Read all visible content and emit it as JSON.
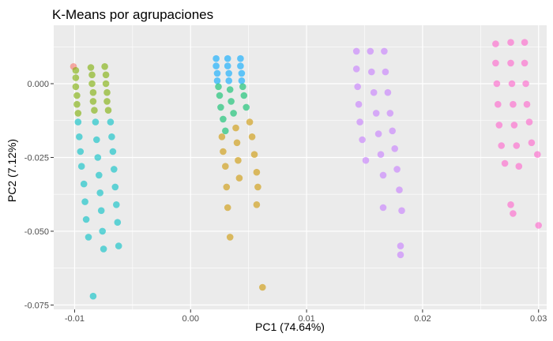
{
  "chart_data": {
    "type": "scatter",
    "title": "K-Means por agrupaciones",
    "xlabel": "PC1 (74.64%)",
    "ylabel": "PC2 (7.12%)",
    "xlim": [
      -0.0118,
      0.0307
    ],
    "ylim": [
      -0.0765,
      0.0198
    ],
    "xticks": [
      -0.01,
      0.0,
      0.01,
      0.02,
      0.03
    ],
    "xtick_labels": [
      "-0.01",
      "0.00",
      "0.01",
      "0.02",
      "0.03"
    ],
    "yticks": [
      0.0,
      -0.025,
      -0.05,
      -0.075
    ],
    "ytick_labels": [
      "0.000",
      "-0.025",
      "-0.050",
      "-0.075"
    ],
    "grid": true,
    "legend": "none",
    "series": [
      {
        "color": "#F8766D",
        "points": [
          [
            -0.0101,
            0.0058
          ]
        ]
      },
      {
        "color": "#7CAE00",
        "points": [
          [
            -0.0099,
            0.0045
          ],
          [
            -0.0099,
            0.002
          ],
          [
            -0.0099,
            -0.001
          ],
          [
            -0.0098,
            -0.004
          ],
          [
            -0.0098,
            -0.007
          ],
          [
            -0.0097,
            -0.01
          ],
          [
            -0.0086,
            0.0055
          ],
          [
            -0.0085,
            0.003
          ],
          [
            -0.0085,
            0.0
          ],
          [
            -0.0084,
            -0.003
          ],
          [
            -0.0084,
            -0.006
          ],
          [
            -0.0083,
            -0.009
          ],
          [
            -0.0074,
            0.0058
          ],
          [
            -0.0073,
            0.003
          ],
          [
            -0.0073,
            0.0
          ],
          [
            -0.0072,
            -0.003
          ],
          [
            -0.0072,
            -0.006
          ],
          [
            -0.0071,
            -0.009
          ]
        ]
      },
      {
        "color": "#00BFC4",
        "points": [
          [
            -0.0097,
            -0.013
          ],
          [
            -0.0096,
            -0.018
          ],
          [
            -0.0095,
            -0.023
          ],
          [
            -0.0094,
            -0.028
          ],
          [
            -0.0092,
            -0.034
          ],
          [
            -0.0091,
            -0.04
          ],
          [
            -0.009,
            -0.046
          ],
          [
            -0.0088,
            -0.052
          ],
          [
            -0.0082,
            -0.013
          ],
          [
            -0.0081,
            -0.019
          ],
          [
            -0.008,
            -0.025
          ],
          [
            -0.0079,
            -0.031
          ],
          [
            -0.0078,
            -0.037
          ],
          [
            -0.0077,
            -0.043
          ],
          [
            -0.0076,
            -0.05
          ],
          [
            -0.0075,
            -0.056
          ],
          [
            -0.0069,
            -0.013
          ],
          [
            -0.0068,
            -0.018
          ],
          [
            -0.0067,
            -0.023
          ],
          [
            -0.0066,
            -0.029
          ],
          [
            -0.0065,
            -0.035
          ],
          [
            -0.0064,
            -0.041
          ],
          [
            -0.0063,
            -0.047
          ],
          [
            -0.0062,
            -0.055
          ],
          [
            -0.0084,
            -0.072
          ]
        ]
      },
      {
        "color": "#00A9FF",
        "points": [
          [
            0.0022,
            0.0085
          ],
          [
            0.0022,
            0.006
          ],
          [
            0.0023,
            0.0035
          ],
          [
            0.0023,
            0.001
          ],
          [
            0.0032,
            0.0085
          ],
          [
            0.0032,
            0.006
          ],
          [
            0.0033,
            0.0035
          ],
          [
            0.0033,
            0.001
          ],
          [
            0.0043,
            0.0085
          ],
          [
            0.0043,
            0.006
          ],
          [
            0.0044,
            0.0035
          ],
          [
            0.0044,
            0.001
          ]
        ]
      },
      {
        "color": "#00BE67",
        "points": [
          [
            0.0024,
            -0.001
          ],
          [
            0.0025,
            -0.004
          ],
          [
            0.0026,
            -0.008
          ],
          [
            0.0028,
            -0.012
          ],
          [
            0.003,
            -0.016
          ],
          [
            0.0034,
            -0.002
          ],
          [
            0.0035,
            -0.006
          ],
          [
            0.0037,
            -0.01
          ],
          [
            0.0045,
            -0.001
          ],
          [
            0.0046,
            -0.004
          ],
          [
            0.0048,
            -0.008
          ]
        ]
      },
      {
        "color": "#CD9600",
        "points": [
          [
            0.0027,
            -0.018
          ],
          [
            0.0028,
            -0.023
          ],
          [
            0.003,
            -0.028
          ],
          [
            0.0031,
            -0.035
          ],
          [
            0.0032,
            -0.042
          ],
          [
            0.0039,
            -0.015
          ],
          [
            0.004,
            -0.02
          ],
          [
            0.0041,
            -0.026
          ],
          [
            0.0042,
            -0.032
          ],
          [
            0.0034,
            -0.052
          ],
          [
            0.0051,
            -0.013
          ],
          [
            0.0053,
            -0.018
          ],
          [
            0.0055,
            -0.024
          ],
          [
            0.0057,
            -0.03
          ],
          [
            0.0058,
            -0.035
          ],
          [
            0.0057,
            -0.041
          ],
          [
            0.0062,
            -0.069
          ]
        ]
      },
      {
        "color": "#C77CFF",
        "points": [
          [
            0.0143,
            0.011
          ],
          [
            0.0143,
            0.005
          ],
          [
            0.0144,
            -0.001
          ],
          [
            0.0145,
            -0.007
          ],
          [
            0.0146,
            -0.013
          ],
          [
            0.0148,
            -0.019
          ],
          [
            0.0151,
            -0.026
          ],
          [
            0.0155,
            0.011
          ],
          [
            0.0156,
            0.004
          ],
          [
            0.0158,
            -0.003
          ],
          [
            0.016,
            -0.01
          ],
          [
            0.0162,
            -0.017
          ],
          [
            0.0164,
            -0.024
          ],
          [
            0.0166,
            -0.031
          ],
          [
            0.0166,
            -0.042
          ],
          [
            0.0167,
            0.011
          ],
          [
            0.0168,
            0.004
          ],
          [
            0.017,
            -0.003
          ],
          [
            0.0172,
            -0.01
          ],
          [
            0.0174,
            -0.016
          ],
          [
            0.0176,
            -0.022
          ],
          [
            0.0178,
            -0.029
          ],
          [
            0.018,
            -0.036
          ],
          [
            0.0182,
            -0.043
          ],
          [
            0.0181,
            -0.055
          ],
          [
            0.0181,
            -0.058
          ]
        ]
      },
      {
        "color": "#FF61CC",
        "points": [
          [
            0.0263,
            0.0135
          ],
          [
            0.0263,
            0.007
          ],
          [
            0.0264,
            0.0
          ],
          [
            0.0265,
            -0.007
          ],
          [
            0.0266,
            -0.014
          ],
          [
            0.0268,
            -0.021
          ],
          [
            0.0271,
            -0.027
          ],
          [
            0.0276,
            0.014
          ],
          [
            0.0276,
            0.007
          ],
          [
            0.0277,
            0.0
          ],
          [
            0.0278,
            -0.007
          ],
          [
            0.0279,
            -0.014
          ],
          [
            0.0281,
            -0.021
          ],
          [
            0.0283,
            -0.028
          ],
          [
            0.0288,
            0.014
          ],
          [
            0.0288,
            0.007
          ],
          [
            0.0289,
            0.0
          ],
          [
            0.029,
            -0.007
          ],
          [
            0.0292,
            -0.013
          ],
          [
            0.0294,
            -0.02
          ],
          [
            0.0276,
            -0.041
          ],
          [
            0.0278,
            -0.044
          ],
          [
            0.0299,
            -0.024
          ],
          [
            0.03,
            -0.048
          ]
        ]
      }
    ]
  }
}
